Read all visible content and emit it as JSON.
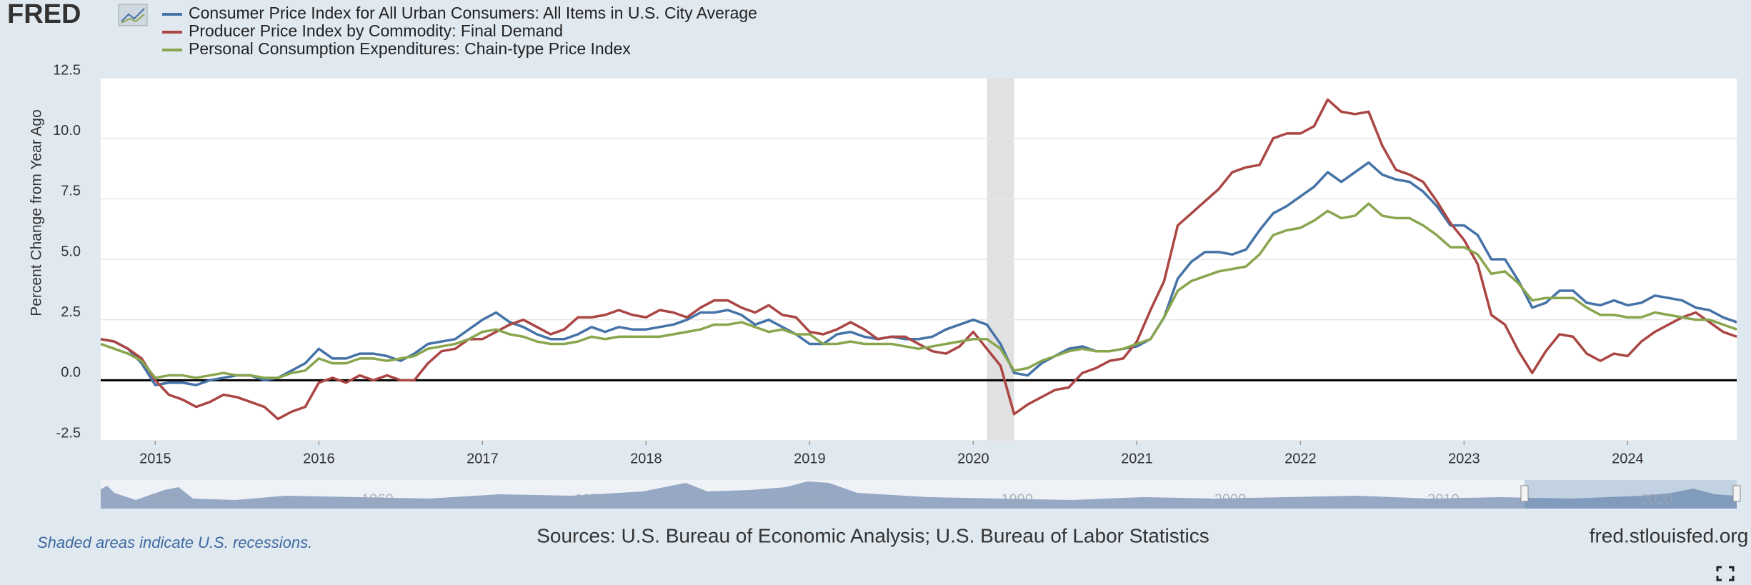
{
  "chart_data": {
    "type": "line",
    "logo": "FRED",
    "y_label": "Percent Change from Year Ago",
    "source": "Sources: U.S. Bureau of Economic Analysis; U.S. Bureau of Labor Statistics",
    "note": "Shaded areas indicate U.S. recessions.",
    "credit": "fred.stlouisfed.org",
    "grid": true,
    "ylim": [
      -2.5,
      12.5
    ],
    "yticks": [
      -2.5,
      {
        "value": 0,
        "label": "0.0"
      },
      2.5,
      {
        "value": 5,
        "label": "5.0"
      },
      7.5,
      {
        "value": 10,
        "label": "10.0"
      },
      12.5
    ],
    "xlim": [
      "2014-09",
      "2024-09"
    ],
    "xticks": [
      {
        "value": "2015-01",
        "label": "2015"
      },
      {
        "value": "2016-01",
        "label": "2016"
      },
      {
        "value": "2017-01",
        "label": "2017"
      },
      {
        "value": "2018-01",
        "label": "2018"
      },
      {
        "value": "2019-01",
        "label": "2019"
      },
      {
        "value": "2020-01",
        "label": "2020"
      },
      {
        "value": "2021-01",
        "label": "2021"
      },
      {
        "value": "2022-01",
        "label": "2022"
      },
      {
        "value": "2023-01",
        "label": "2023"
      },
      {
        "value": "2024-01",
        "label": "2024"
      }
    ],
    "recessions": [
      {
        "start": "2020-02",
        "end": "2020-04"
      }
    ],
    "navigator_labels": [
      "1950",
      "1960",
      "1970",
      "1980",
      "1990",
      "2000",
      "2010",
      "2020"
    ],
    "x": [
      "2014-09",
      "2014-10",
      "2014-11",
      "2014-12",
      "2015-01",
      "2015-02",
      "2015-03",
      "2015-04",
      "2015-05",
      "2015-06",
      "2015-07",
      "2015-08",
      "2015-09",
      "2015-10",
      "2015-11",
      "2015-12",
      "2016-01",
      "2016-02",
      "2016-03",
      "2016-04",
      "2016-05",
      "2016-06",
      "2016-07",
      "2016-08",
      "2016-09",
      "2016-10",
      "2016-11",
      "2016-12",
      "2017-01",
      "2017-02",
      "2017-03",
      "2017-04",
      "2017-05",
      "2017-06",
      "2017-07",
      "2017-08",
      "2017-09",
      "2017-10",
      "2017-11",
      "2017-12",
      "2018-01",
      "2018-02",
      "2018-03",
      "2018-04",
      "2018-05",
      "2018-06",
      "2018-07",
      "2018-08",
      "2018-09",
      "2018-10",
      "2018-11",
      "2018-12",
      "2019-01",
      "2019-02",
      "2019-03",
      "2019-04",
      "2019-05",
      "2019-06",
      "2019-07",
      "2019-08",
      "2019-09",
      "2019-10",
      "2019-11",
      "2019-12",
      "2020-01",
      "2020-02",
      "2020-03",
      "2020-04",
      "2020-05",
      "2020-06",
      "2020-07",
      "2020-08",
      "2020-09",
      "2020-10",
      "2020-11",
      "2020-12",
      "2021-01",
      "2021-02",
      "2021-03",
      "2021-04",
      "2021-05",
      "2021-06",
      "2021-07",
      "2021-08",
      "2021-09",
      "2021-10",
      "2021-11",
      "2021-12",
      "2022-01",
      "2022-02",
      "2022-03",
      "2022-04",
      "2022-05",
      "2022-06",
      "2022-07",
      "2022-08",
      "2022-09",
      "2022-10",
      "2022-11",
      "2022-12",
      "2023-01",
      "2023-02",
      "2023-03",
      "2023-04",
      "2023-05",
      "2023-06",
      "2023-07",
      "2023-08",
      "2023-09",
      "2023-10",
      "2023-11",
      "2023-12",
      "2024-01",
      "2024-02",
      "2024-03",
      "2024-04",
      "2024-05",
      "2024-06",
      "2024-07",
      "2024-08",
      "2024-09"
    ],
    "series": [
      {
        "name": "Consumer Price Index for All Urban Consumers: All Items in U.S. City Average",
        "color": "#4572a7",
        "values": [
          1.7,
          1.6,
          1.3,
          0.7,
          -0.2,
          -0.1,
          -0.1,
          -0.2,
          0.0,
          0.1,
          0.2,
          0.2,
          0.0,
          0.1,
          0.4,
          0.7,
          1.3,
          0.9,
          0.9,
          1.1,
          1.1,
          1.0,
          0.8,
          1.1,
          1.5,
          1.6,
          1.7,
          2.1,
          2.5,
          2.8,
          2.4,
          2.2,
          1.9,
          1.7,
          1.7,
          1.9,
          2.2,
          2.0,
          2.2,
          2.1,
          2.1,
          2.2,
          2.3,
          2.5,
          2.8,
          2.8,
          2.9,
          2.7,
          2.3,
          2.5,
          2.2,
          1.9,
          1.5,
          1.5,
          1.9,
          2.0,
          1.8,
          1.7,
          1.8,
          1.7,
          1.7,
          1.8,
          2.1,
          2.3,
          2.5,
          2.3,
          1.5,
          0.3,
          0.2,
          0.7,
          1.0,
          1.3,
          1.4,
          1.2,
          1.2,
          1.3,
          1.4,
          1.7,
          2.6,
          4.2,
          4.9,
          5.3,
          5.3,
          5.2,
          5.4,
          6.2,
          6.9,
          7.2,
          7.6,
          8.0,
          8.6,
          8.2,
          8.6,
          9.0,
          8.5,
          8.3,
          8.2,
          7.8,
          7.2,
          6.4,
          6.4,
          6.0,
          5.0,
          5.0,
          4.1,
          3.0,
          3.2,
          3.7,
          3.7,
          3.2,
          3.1,
          3.3,
          3.1,
          3.2,
          3.5,
          3.4,
          3.3,
          3.0,
          2.9,
          2.6,
          2.4
        ]
      },
      {
        "name": "Producer Price Index by Commodity: Final Demand",
        "color": "#aa4643",
        "values": [
          1.7,
          1.6,
          1.3,
          0.9,
          0.0,
          -0.6,
          -0.8,
          -1.1,
          -0.9,
          -0.6,
          -0.7,
          -0.9,
          -1.1,
          -1.6,
          -1.3,
          -1.1,
          -0.1,
          0.1,
          -0.1,
          0.2,
          0.0,
          0.2,
          0.0,
          0.0,
          0.7,
          1.2,
          1.3,
          1.7,
          1.7,
          2.0,
          2.3,
          2.5,
          2.2,
          1.9,
          2.1,
          2.6,
          2.6,
          2.7,
          2.9,
          2.7,
          2.6,
          2.9,
          2.8,
          2.6,
          3.0,
          3.3,
          3.3,
          3.0,
          2.8,
          3.1,
          2.7,
          2.6,
          2.0,
          1.9,
          2.1,
          2.4,
          2.1,
          1.7,
          1.8,
          1.8,
          1.5,
          1.2,
          1.1,
          1.4,
          2.0,
          1.3,
          0.6,
          -1.4,
          -1.0,
          -0.7,
          -0.4,
          -0.3,
          0.3,
          0.5,
          0.8,
          0.9,
          1.6,
          2.9,
          4.1,
          6.4,
          6.9,
          7.4,
          7.9,
          8.6,
          8.8,
          8.9,
          10.0,
          10.2,
          10.2,
          10.5,
          11.6,
          11.1,
          11.0,
          11.1,
          9.7,
          8.7,
          8.5,
          8.2,
          7.4,
          6.5,
          5.8,
          4.8,
          2.7,
          2.3,
          1.2,
          0.3,
          1.2,
          1.9,
          1.8,
          1.1,
          0.8,
          1.1,
          1.0,
          1.6,
          2.0,
          2.3,
          2.6,
          2.8,
          2.4,
          2.0,
          1.8
        ]
      },
      {
        "name": "Personal Consumption Expenditures: Chain-type Price Index",
        "color": "#89a54e",
        "values": [
          1.5,
          1.3,
          1.1,
          0.8,
          0.1,
          0.2,
          0.2,
          0.1,
          0.2,
          0.3,
          0.2,
          0.2,
          0.1,
          0.1,
          0.3,
          0.4,
          0.9,
          0.7,
          0.7,
          0.9,
          0.9,
          0.8,
          0.9,
          1.0,
          1.3,
          1.4,
          1.5,
          1.7,
          2.0,
          2.1,
          1.9,
          1.8,
          1.6,
          1.5,
          1.5,
          1.6,
          1.8,
          1.7,
          1.8,
          1.8,
          1.8,
          1.8,
          1.9,
          2.0,
          2.1,
          2.3,
          2.3,
          2.4,
          2.2,
          2.0,
          2.1,
          1.9,
          1.9,
          1.5,
          1.5,
          1.6,
          1.5,
          1.5,
          1.5,
          1.4,
          1.3,
          1.4,
          1.5,
          1.6,
          1.7,
          1.7,
          1.3,
          0.4,
          0.5,
          0.8,
          1.0,
          1.2,
          1.3,
          1.2,
          1.2,
          1.3,
          1.5,
          1.7,
          2.6,
          3.7,
          4.1,
          4.3,
          4.5,
          4.6,
          4.7,
          5.2,
          6.0,
          6.2,
          6.3,
          6.6,
          7.0,
          6.7,
          6.8,
          7.3,
          6.8,
          6.7,
          6.7,
          6.4,
          6.0,
          5.5,
          5.5,
          5.2,
          4.4,
          4.5,
          4.0,
          3.3,
          3.4,
          3.4,
          3.4,
          3.0,
          2.7,
          2.7,
          2.6,
          2.6,
          2.8,
          2.7,
          2.6,
          2.5,
          2.5,
          2.3,
          2.1
        ]
      }
    ]
  }
}
